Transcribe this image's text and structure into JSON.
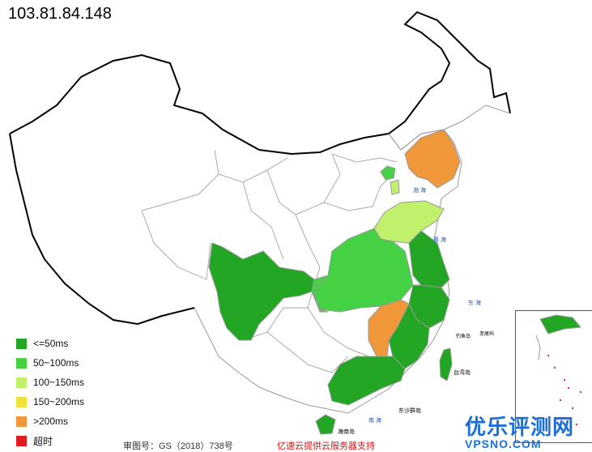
{
  "ip_address": "103.81.84.148",
  "colors": {
    "le_50": "#23a623",
    "r50_100": "#44d144",
    "r100_150": "#c1f06c",
    "r150_200": "#efe23a",
    "gt_200": "#f0973a",
    "timeout": "#e01c1c",
    "border": "#999999",
    "outline": "#000000"
  },
  "legend": [
    {
      "label": "<=50ms",
      "color": "#23a623"
    },
    {
      "label": "50~100ms",
      "color": "#44d144"
    },
    {
      "label": "100~150ms",
      "color": "#c1f06c"
    },
    {
      "label": "150~200ms",
      "color": "#efe23a"
    },
    {
      "label": ">200ms",
      "color": "#f0973a"
    },
    {
      "label": "超时",
      "color": "#e01c1c"
    }
  ],
  "sea_labels": [
    "渤 海",
    "黄 海",
    "东 海",
    "南 海"
  ],
  "island_labels": [
    "台湾岛",
    "海南岛",
    "东沙群岛",
    "钓鱼岛",
    "赤尾屿"
  ],
  "footer": {
    "left": "审图号：GS（2018）738号",
    "right": "亿速云提供云服务器支持"
  },
  "watermark": {
    "main": "优乐评测网",
    "sub": "VPSNO.COM"
  }
}
